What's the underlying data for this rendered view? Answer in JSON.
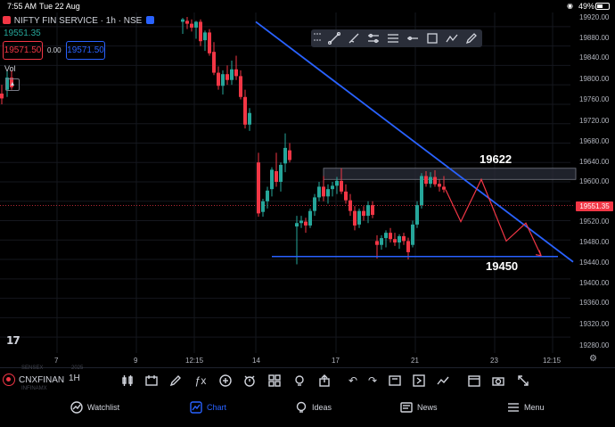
{
  "status_bar": {
    "time": "7:55 AM",
    "date": "Tue 22 Aug",
    "battery": "49%"
  },
  "header": {
    "symbol_description": "NIFTY FIN SERVICE · 1h · NSE",
    "last_price": "19551.35",
    "sell_price": "19571.50",
    "spread": "0.00",
    "buy_price": "19571.50",
    "volume_label": "Vol"
  },
  "drawing_toolbar": {
    "tools": [
      "trend-line-icon",
      "brush-icon",
      "settings-lines-icon",
      "sliders-icon",
      "horizontal-line-icon",
      "rectangle-icon",
      "path-icon",
      "pencil-icon"
    ]
  },
  "price_axis": {
    "labels": [
      "19920.00",
      "19880.00",
      "19840.00",
      "19800.00",
      "19760.00",
      "19720.00",
      "19680.00",
      "19640.00",
      "19600.00",
      "19520.00",
      "19480.00",
      "19440.00",
      "19400.00",
      "19360.00",
      "19320.00",
      "19280.00"
    ],
    "current_price": "19551.35"
  },
  "time_axis": {
    "labels": [
      "7",
      "9",
      "12:15",
      "14",
      "17",
      "21",
      "23",
      "12:15"
    ]
  },
  "annotations": {
    "resistance": "19622",
    "support": "19450"
  },
  "chart_data": {
    "type": "candlestick",
    "ylim": [
      19260,
      19940
    ],
    "current_price": 19551.35,
    "resistance_zone": [
      19605,
      19628
    ],
    "support_level": 19446,
    "candles": [
      {
        "x": 2,
        "o": 19782,
        "h": 19800,
        "l": 19760,
        "c": 19772
      },
      {
        "x": 8,
        "o": 19790,
        "h": 19830,
        "l": 19775,
        "c": 19815
      },
      {
        "x": 13,
        "o": 19815,
        "h": 19830,
        "l": 19790,
        "c": 19795
      },
      {
        "x": 205,
        "o": 19930,
        "h": 19938,
        "l": 19905,
        "c": 19935
      },
      {
        "x": 210,
        "o": 19932,
        "h": 19940,
        "l": 19915,
        "c": 19926
      },
      {
        "x": 215,
        "o": 19926,
        "h": 19935,
        "l": 19910,
        "c": 19918
      },
      {
        "x": 220,
        "o": 19918,
        "h": 19932,
        "l": 19895,
        "c": 19930
      },
      {
        "x": 225,
        "o": 19930,
        "h": 19935,
        "l": 19880,
        "c": 19890
      },
      {
        "x": 230,
        "o": 19892,
        "h": 19912,
        "l": 19870,
        "c": 19908
      },
      {
        "x": 235,
        "o": 19908,
        "h": 19915,
        "l": 19860,
        "c": 19865
      },
      {
        "x": 240,
        "o": 19868,
        "h": 19888,
        "l": 19820,
        "c": 19825
      },
      {
        "x": 245,
        "o": 19825,
        "h": 19838,
        "l": 19790,
        "c": 19798
      },
      {
        "x": 250,
        "o": 19798,
        "h": 19830,
        "l": 19780,
        "c": 19822
      },
      {
        "x": 255,
        "o": 19822,
        "h": 19840,
        "l": 19800,
        "c": 19810
      },
      {
        "x": 260,
        "o": 19810,
        "h": 19850,
        "l": 19800,
        "c": 19832
      },
      {
        "x": 265,
        "o": 19832,
        "h": 19860,
        "l": 19810,
        "c": 19818
      },
      {
        "x": 270,
        "o": 19818,
        "h": 19830,
        "l": 19770,
        "c": 19775
      },
      {
        "x": 275,
        "o": 19775,
        "h": 19790,
        "l": 19710,
        "c": 19718
      },
      {
        "x": 280,
        "o": 19718,
        "h": 19752,
        "l": 19705,
        "c": 19742
      },
      {
        "x": 290,
        "o": 19640,
        "h": 19660,
        "l": 19528,
        "c": 19535
      },
      {
        "x": 295,
        "o": 19538,
        "h": 19565,
        "l": 19528,
        "c": 19560
      },
      {
        "x": 300,
        "o": 19560,
        "h": 19590,
        "l": 19545,
        "c": 19582
      },
      {
        "x": 305,
        "o": 19585,
        "h": 19630,
        "l": 19570,
        "c": 19625
      },
      {
        "x": 310,
        "o": 19622,
        "h": 19660,
        "l": 19590,
        "c": 19600
      },
      {
        "x": 315,
        "o": 19600,
        "h": 19640,
        "l": 19580,
        "c": 19635
      },
      {
        "x": 320,
        "o": 19638,
        "h": 19700,
        "l": 19620,
        "c": 19670
      },
      {
        "x": 325,
        "o": 19665,
        "h": 19680,
        "l": 19640,
        "c": 19645
      },
      {
        "x": 333,
        "o": 19508,
        "h": 19530,
        "l": 19430,
        "c": 19515
      },
      {
        "x": 338,
        "o": 19515,
        "h": 19530,
        "l": 19505,
        "c": 19520
      },
      {
        "x": 343,
        "o": 19518,
        "h": 19526,
        "l": 19495,
        "c": 19510
      },
      {
        "x": 348,
        "o": 19510,
        "h": 19545,
        "l": 19505,
        "c": 19540
      },
      {
        "x": 353,
        "o": 19540,
        "h": 19575,
        "l": 19530,
        "c": 19568
      },
      {
        "x": 358,
        "o": 19568,
        "h": 19600,
        "l": 19560,
        "c": 19590
      },
      {
        "x": 363,
        "o": 19590,
        "h": 19612,
        "l": 19560,
        "c": 19570
      },
      {
        "x": 368,
        "o": 19570,
        "h": 19595,
        "l": 19555,
        "c": 19585
      },
      {
        "x": 373,
        "o": 19585,
        "h": 19600,
        "l": 19570,
        "c": 19592
      },
      {
        "x": 378,
        "o": 19592,
        "h": 19610,
        "l": 19575,
        "c": 19602
      },
      {
        "x": 383,
        "o": 19602,
        "h": 19628,
        "l": 19575,
        "c": 19580
      },
      {
        "x": 388,
        "o": 19580,
        "h": 19595,
        "l": 19555,
        "c": 19562
      },
      {
        "x": 393,
        "o": 19562,
        "h": 19575,
        "l": 19530,
        "c": 19540
      },
      {
        "x": 398,
        "o": 19540,
        "h": 19550,
        "l": 19500,
        "c": 19510
      },
      {
        "x": 403,
        "o": 19512,
        "h": 19545,
        "l": 19505,
        "c": 19540
      },
      {
        "x": 408,
        "o": 19540,
        "h": 19550,
        "l": 19520,
        "c": 19530
      },
      {
        "x": 413,
        "o": 19530,
        "h": 19560,
        "l": 19515,
        "c": 19552
      },
      {
        "x": 418,
        "o": 19552,
        "h": 19560,
        "l": 19525,
        "c": 19532
      },
      {
        "x": 423,
        "o": 19478,
        "h": 19490,
        "l": 19442,
        "c": 19470
      },
      {
        "x": 428,
        "o": 19470,
        "h": 19490,
        "l": 19460,
        "c": 19484
      },
      {
        "x": 433,
        "o": 19484,
        "h": 19500,
        "l": 19465,
        "c": 19495
      },
      {
        "x": 438,
        "o": 19495,
        "h": 19505,
        "l": 19475,
        "c": 19482
      },
      {
        "x": 443,
        "o": 19482,
        "h": 19495,
        "l": 19468,
        "c": 19475
      },
      {
        "x": 448,
        "o": 19475,
        "h": 19492,
        "l": 19462,
        "c": 19488
      },
      {
        "x": 453,
        "o": 19488,
        "h": 19495,
        "l": 19470,
        "c": 19478
      },
      {
        "x": 458,
        "o": 19478,
        "h": 19485,
        "l": 19440,
        "c": 19455
      },
      {
        "x": 463,
        "o": 19470,
        "h": 19520,
        "l": 19465,
        "c": 19512
      },
      {
        "x": 468,
        "o": 19512,
        "h": 19560,
        "l": 19505,
        "c": 19552
      },
      {
        "x": 473,
        "o": 19552,
        "h": 19618,
        "l": 19545,
        "c": 19612
      },
      {
        "x": 478,
        "o": 19612,
        "h": 19622,
        "l": 19590,
        "c": 19596
      },
      {
        "x": 483,
        "o": 19596,
        "h": 19620,
        "l": 19588,
        "c": 19610
      },
      {
        "x": 488,
        "o": 19610,
        "h": 19624,
        "l": 19590,
        "c": 19595
      },
      {
        "x": 493,
        "o": 19596,
        "h": 19605,
        "l": 19580,
        "c": 19590
      },
      {
        "x": 498,
        "o": 19590,
        "h": 19612,
        "l": 19578,
        "c": 19584
      }
    ],
    "projection": [
      [
        500,
        19584
      ],
      [
        517,
        19518
      ],
      [
        540,
        19605
      ],
      [
        568,
        19478
      ],
      [
        590,
        19515
      ],
      [
        607,
        19448
      ]
    ],
    "trendline": [
      [
        287,
        19930
      ],
      [
        643,
        19435
      ]
    ]
  },
  "bottom_toolbar": {
    "symbol": "CNXFINAN",
    "interval": "1H",
    "ghost_1": "SENSEX",
    "ghost_2": "INFINAMX",
    "ghost_3": "2025"
  },
  "bottom_nav": {
    "items": [
      {
        "label": "Watchlist",
        "icon": "watchlist-icon"
      },
      {
        "label": "Chart",
        "icon": "chart-icon"
      },
      {
        "label": "Ideas",
        "icon": "ideas-icon"
      },
      {
        "label": "News",
        "icon": "news-icon"
      },
      {
        "label": "Menu",
        "icon": "menu-icon"
      }
    ]
  },
  "colors": {
    "up": "#26a69a",
    "down": "#f23645",
    "trendline": "#2962ff",
    "zone": "#2a2e39"
  }
}
